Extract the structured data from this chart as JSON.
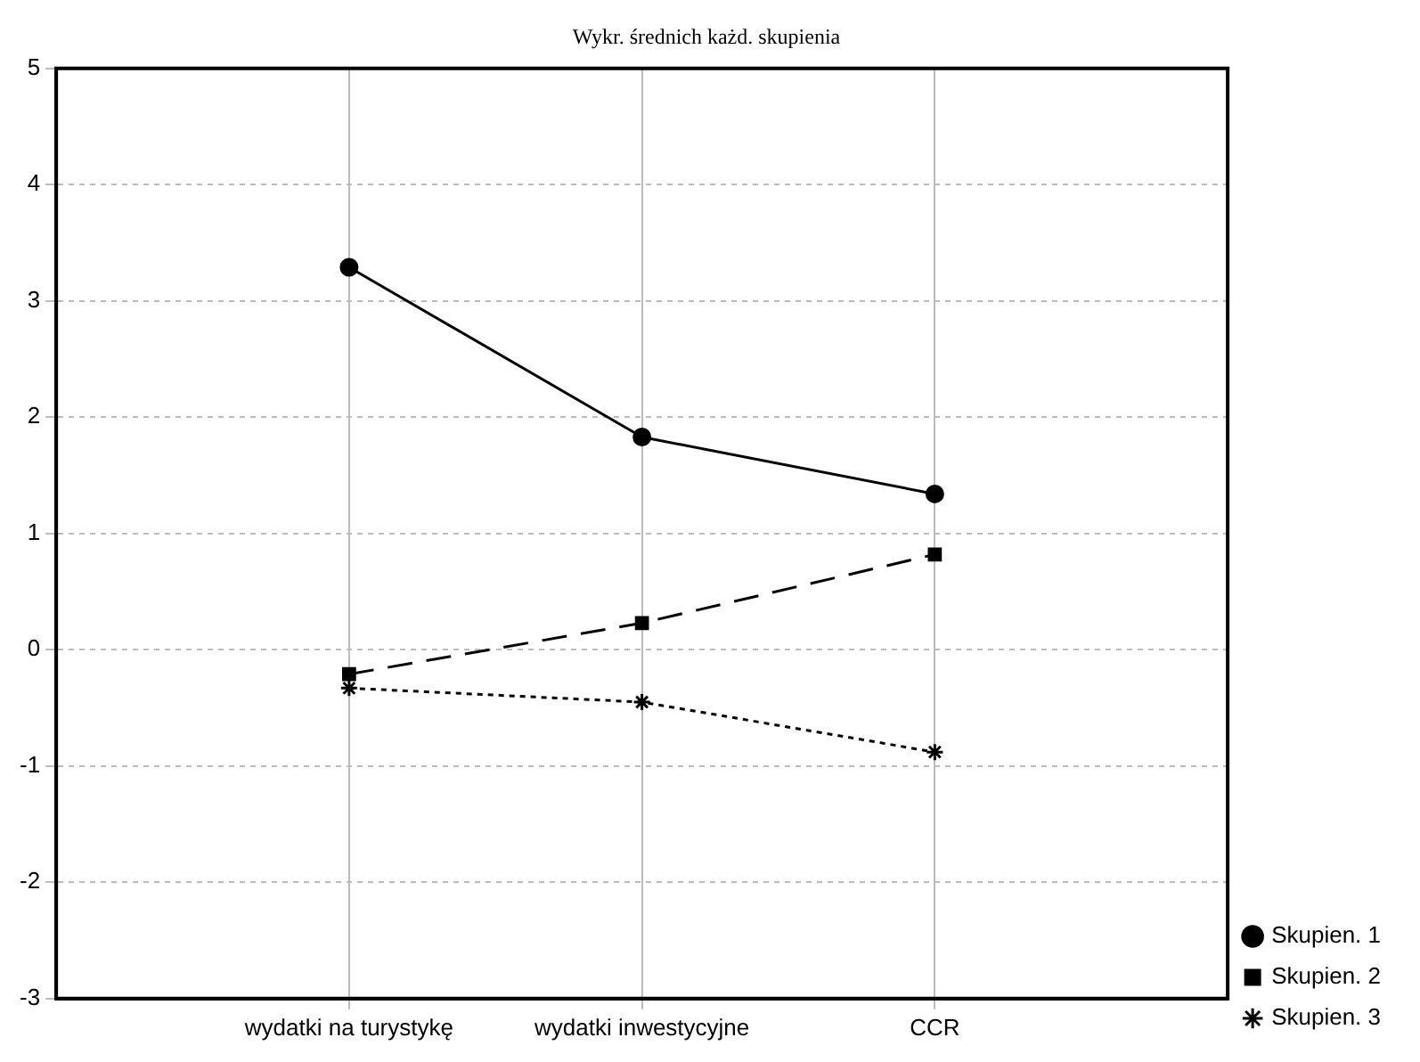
{
  "chart_data": {
    "type": "line",
    "title": "Wykr. średnich każd. skupienia",
    "categories": [
      "wydatki na turystykę",
      "wydatki inwestycyjne",
      "CCR"
    ],
    "series": [
      {
        "name": "Skupien. 1",
        "color": "#000000",
        "values": [
          3.29,
          1.83,
          1.34
        ],
        "marker": "circle",
        "line_style": "solid"
      },
      {
        "name": "Skupien. 2",
        "color": "#000000",
        "values": [
          -0.21,
          0.23,
          0.82
        ],
        "marker": "square",
        "line_style": "dashed"
      },
      {
        "name": "Skupien. 3",
        "color": "#000000",
        "values": [
          -0.33,
          -0.45,
          -0.88
        ],
        "marker": "cross",
        "line_style": "dotted"
      }
    ],
    "ylim": [
      -3,
      5
    ],
    "yticks": [
      -3,
      -2,
      -1,
      0,
      1,
      2,
      3,
      4,
      5
    ],
    "grid": true,
    "legend": "bottom right"
  }
}
